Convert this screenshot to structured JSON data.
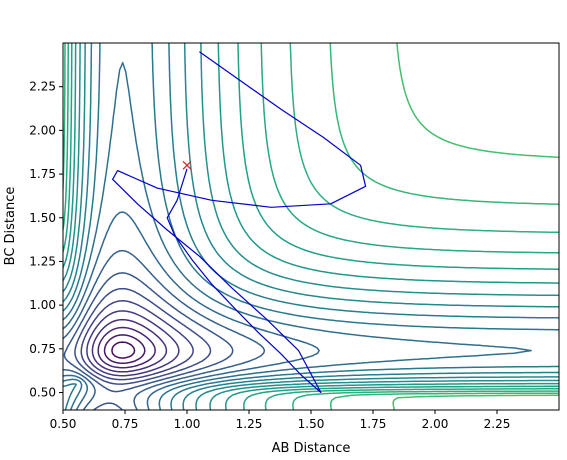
{
  "chart_data": {
    "type": "contour",
    "xlabel": "AB Distance",
    "ylabel": "BC Distance",
    "xlim": [
      0.5,
      2.5
    ],
    "ylim": [
      0.4,
      2.5
    ],
    "xticks": [
      "0.50",
      "0.75",
      "1.00",
      "1.25",
      "1.50",
      "1.75",
      "2.00",
      "2.25"
    ],
    "xtick_values": [
      0.5,
      0.75,
      1.0,
      1.25,
      1.5,
      1.75,
      2.0,
      2.25
    ],
    "yticks": [
      "0.50",
      "0.75",
      "1.00",
      "1.25",
      "1.50",
      "1.75",
      "2.00",
      "2.25"
    ],
    "ytick_values": [
      0.5,
      0.75,
      1.0,
      1.25,
      1.5,
      1.75,
      2.0,
      2.25
    ],
    "colormap": "viridis",
    "contour_levels": 30,
    "marker": {
      "symbol": "x",
      "color": "#d62728",
      "x": 1.0,
      "y": 1.8
    },
    "trajectory": {
      "color": "#0000cc",
      "points": [
        [
          1.05,
          2.45
        ],
        [
          1.2,
          2.3
        ],
        [
          1.38,
          2.12
        ],
        [
          1.55,
          1.96
        ],
        [
          1.7,
          1.8
        ],
        [
          1.72,
          1.68
        ],
        [
          1.58,
          1.58
        ],
        [
          1.34,
          1.56
        ],
        [
          1.1,
          1.6
        ],
        [
          0.88,
          1.67
        ],
        [
          0.72,
          1.77
        ],
        [
          0.7,
          1.72
        ],
        [
          0.8,
          1.58
        ],
        [
          0.92,
          1.43
        ],
        [
          1.05,
          1.28
        ],
        [
          1.18,
          1.1
        ],
        [
          1.32,
          0.92
        ],
        [
          1.45,
          0.74
        ],
        [
          1.54,
          0.5
        ],
        [
          1.46,
          0.6
        ],
        [
          1.38,
          0.72
        ],
        [
          1.29,
          0.84
        ],
        [
          1.2,
          0.97
        ],
        [
          1.1,
          1.12
        ],
        [
          1.02,
          1.26
        ],
        [
          0.95,
          1.4
        ],
        [
          0.92,
          1.5
        ],
        [
          0.96,
          1.6
        ],
        [
          1.0,
          1.78
        ]
      ]
    },
    "grid": false
  }
}
